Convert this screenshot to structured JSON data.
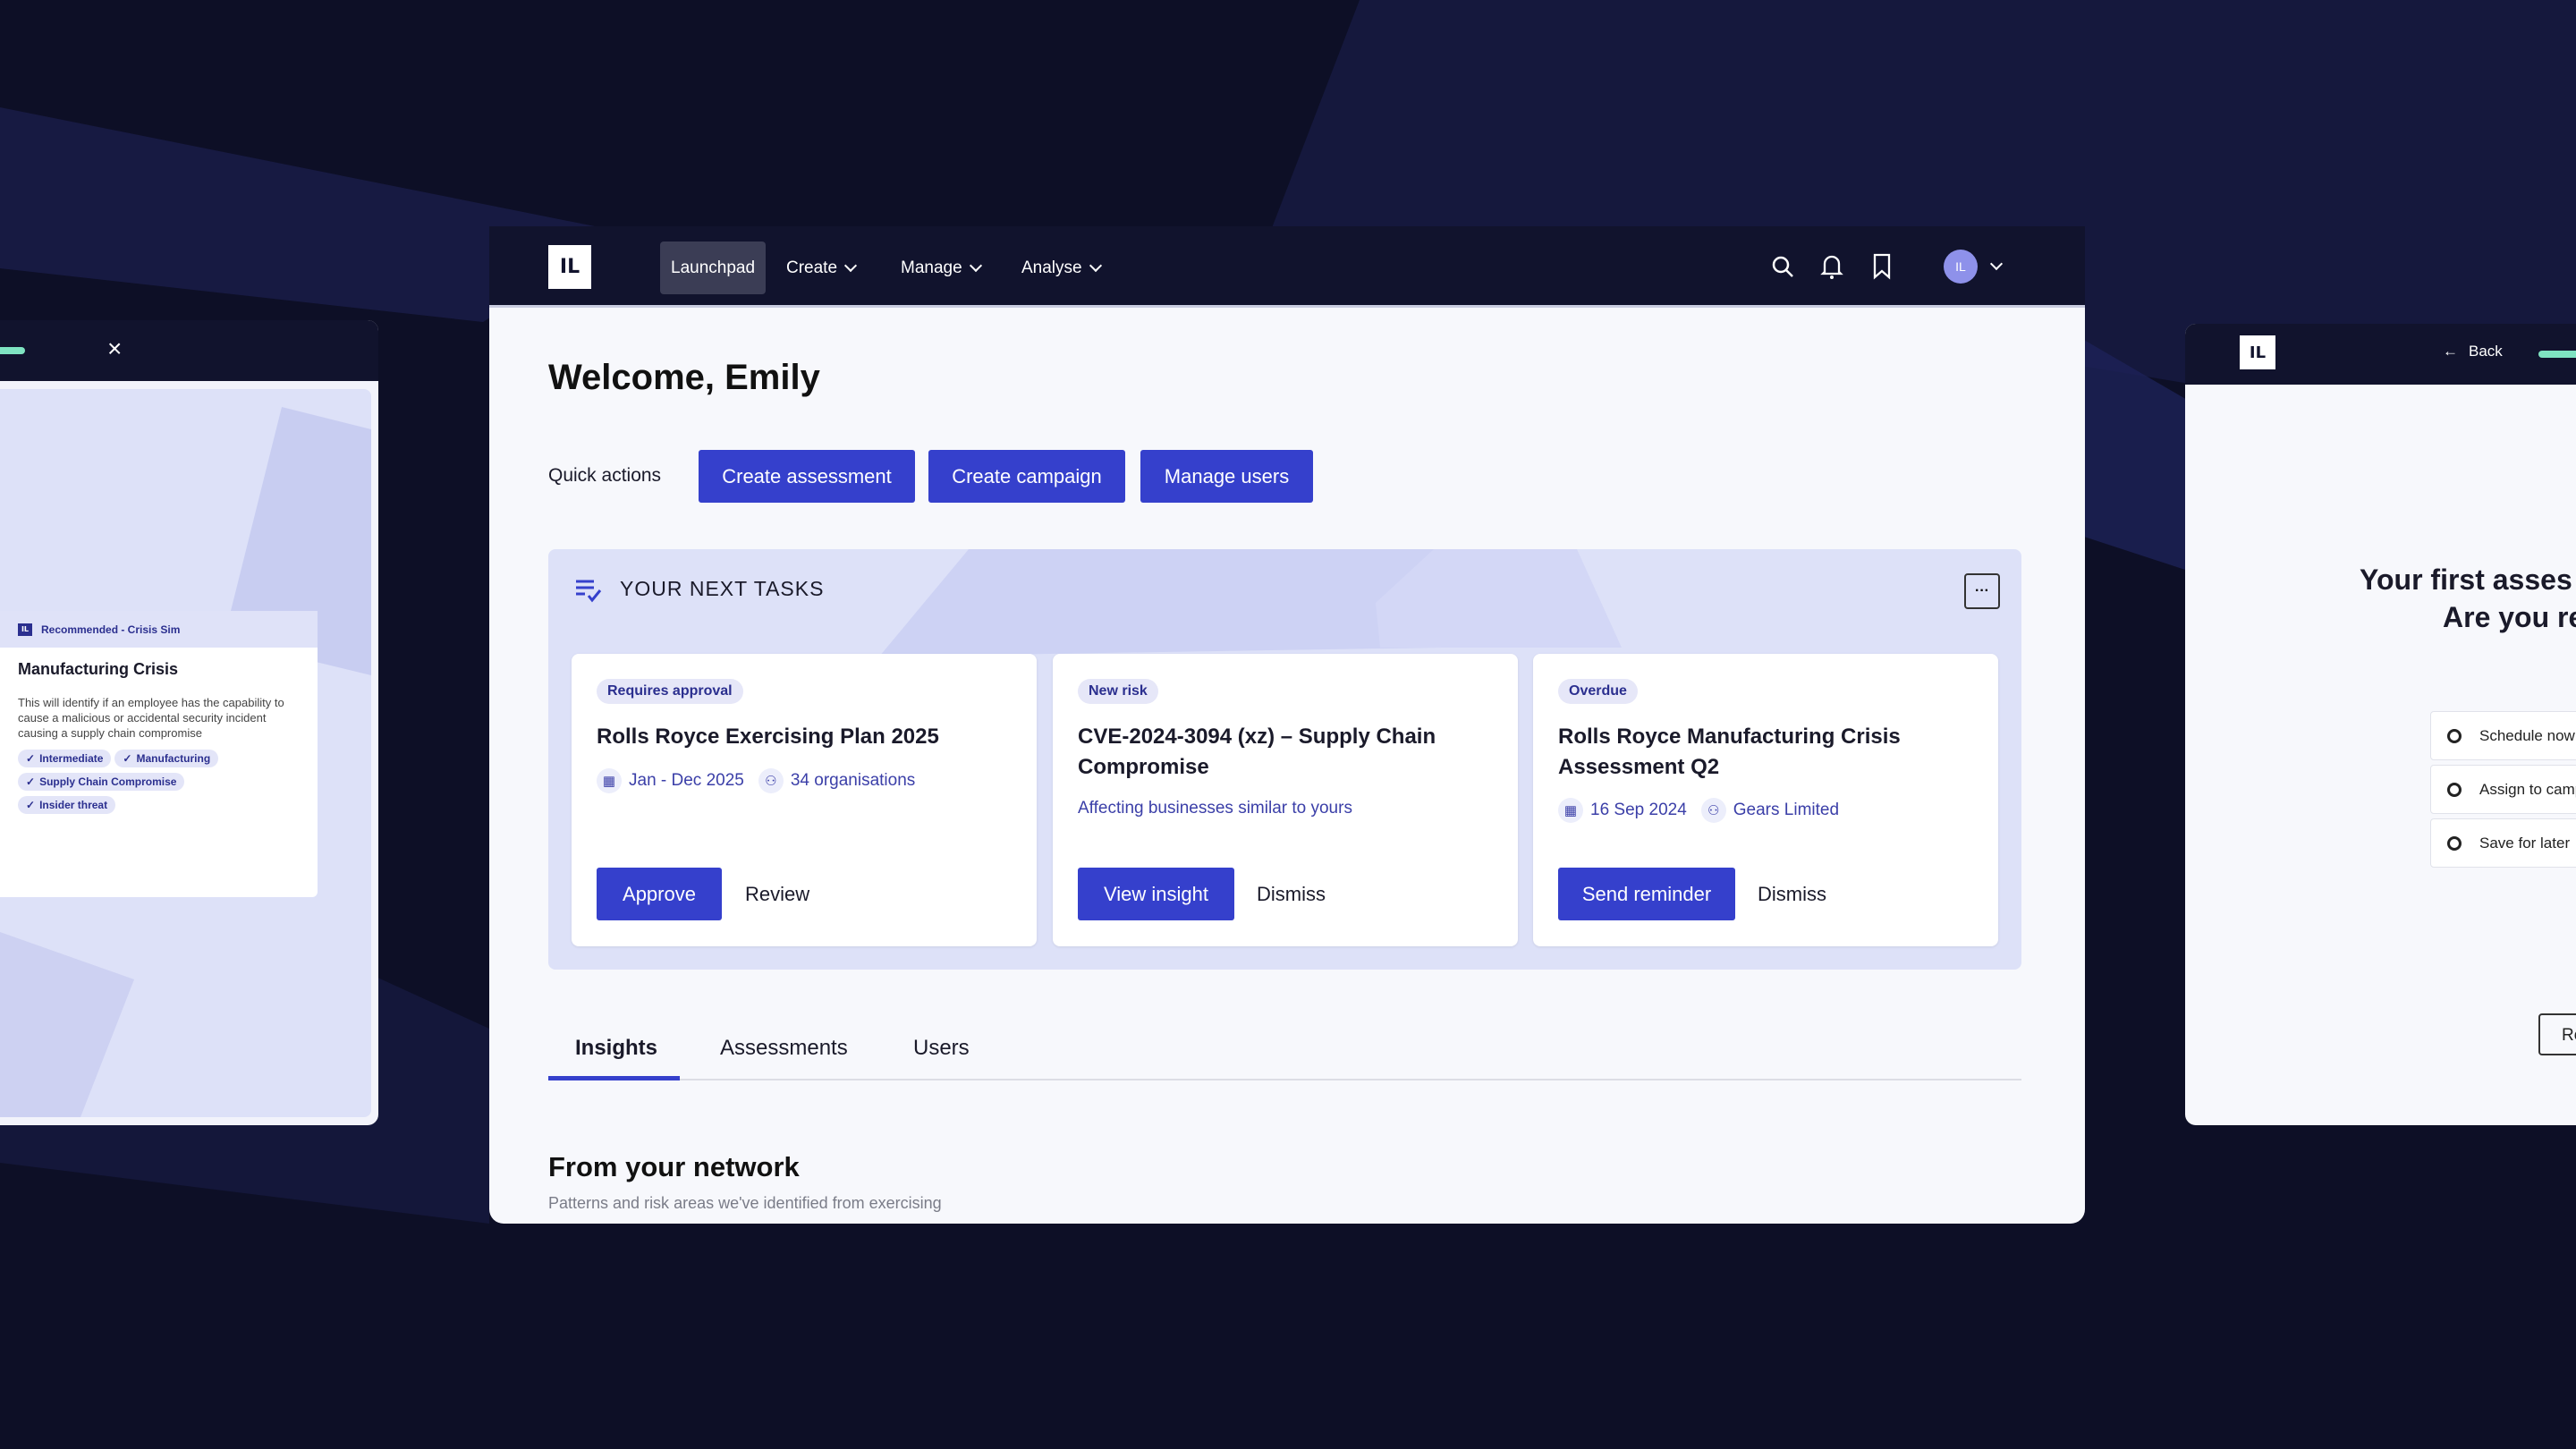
{
  "colors": {
    "background": "#0d0f26",
    "nav": "#11132d",
    "primary": "#3540cc",
    "panel": "#dde1f8",
    "accent_green": "#7fe3c1"
  },
  "nav": {
    "logo": "IL",
    "items": [
      {
        "label": "Launchpad",
        "active": true
      },
      {
        "label": "Create"
      },
      {
        "label": "Manage"
      },
      {
        "label": "Analyse"
      }
    ],
    "avatar": "IL",
    "icons": [
      "search-icon",
      "bell-icon",
      "bookmark-icon"
    ]
  },
  "welcome": "Welcome, Emily",
  "quick_actions": {
    "label": "Quick actions",
    "buttons": [
      "Create assessment",
      "Create campaign",
      "Manage users"
    ]
  },
  "tasks": {
    "title": "YOUR NEXT TASKS",
    "more": "···",
    "cards": [
      {
        "badge": "Requires approval",
        "title": "Rolls Royce Exercising Plan 2025",
        "date": "Jan - Dec 2025",
        "org": "34 organisations",
        "primary": "Approve",
        "secondary": "Review"
      },
      {
        "badge": "New risk",
        "title": "CVE-2024-3094 (xz) – Supply Chain Compromise",
        "subtitle": "Affecting businesses similar to yours",
        "primary": "View insight",
        "secondary": "Dismiss"
      },
      {
        "badge": "Overdue",
        "title": "Rolls Royce Manufacturing Crisis Assessment Q2",
        "date": "16 Sep 2024",
        "org": "Gears Limited",
        "primary": "Send reminder",
        "secondary": "Dismiss"
      }
    ]
  },
  "tabs": [
    {
      "label": "Insights",
      "active": true
    },
    {
      "label": "Assessments"
    },
    {
      "label": "Users"
    }
  ],
  "network": {
    "title": "From your network",
    "subtitle": "Patterns and risk areas we've identified from exercising"
  },
  "left_panel": {
    "close": "×",
    "card": {
      "header": "Recommended - Crisis Sim",
      "logo": "IL",
      "title": "Manufacturing Crisis",
      "description": "This will identify if an employee has the capability to cause a malicious or accidental security incident causing a supply chain compromise",
      "tags": [
        "Intermediate",
        "Manufacturing",
        "Supply Chain Compromise",
        "Insider threat"
      ]
    }
  },
  "right_panel": {
    "logo": "IL",
    "back": "Back",
    "heading_line1": "Your first asses",
    "heading_line2": "Are you re",
    "options": [
      "Schedule now",
      "Assign to camp",
      "Save for later"
    ],
    "button": "Re"
  }
}
